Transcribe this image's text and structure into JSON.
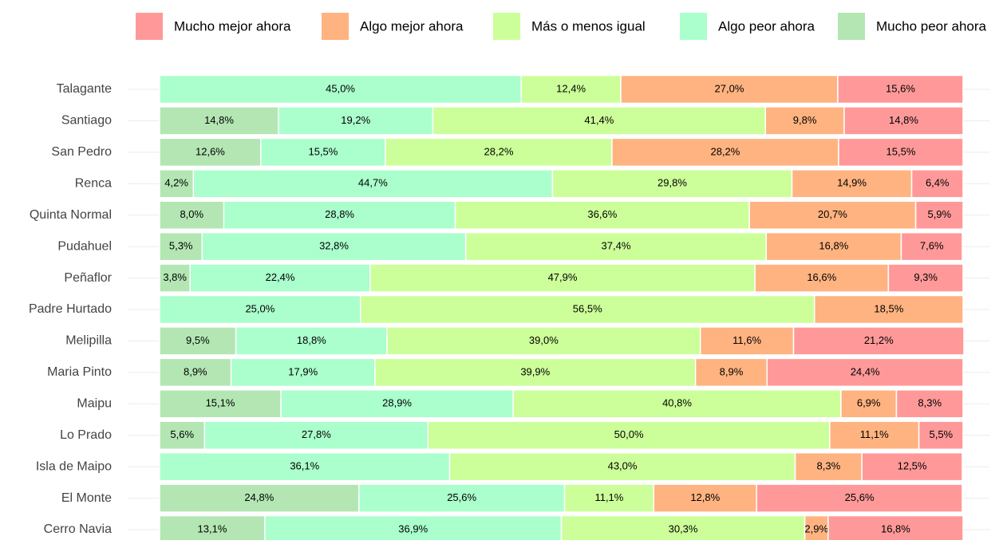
{
  "chart_data": {
    "type": "stacked-barh",
    "categories": [
      "Talagante",
      "Santiago",
      "San Pedro",
      "Renca",
      "Quinta Normal",
      "Pudahuel",
      "Peñaflor",
      "Padre Hurtado",
      "Melipilla",
      "Maria Pinto",
      "Maipu",
      "Lo Prado",
      "Isla de Maipo",
      "El Monte",
      "Cerro Navia"
    ],
    "xlim": [
      0,
      100
    ],
    "legend": "top",
    "series": [
      {
        "name": "Mucho mejor ahora",
        "color": "#ff9999",
        "values": [
          15.6,
          14.8,
          15.5,
          6.4,
          5.9,
          7.6,
          9.3,
          null,
          21.2,
          24.4,
          8.3,
          5.5,
          12.5,
          25.6,
          16.8
        ],
        "value_labels": [
          "15,6%",
          "14,8%",
          "15,5%",
          "6,4%",
          "5,9%",
          "7,6%",
          "9,3%",
          null,
          "21,2%",
          "24,4%",
          "8,3%",
          "5,5%",
          "12,5%",
          "25,6%",
          "16,8%"
        ]
      },
      {
        "name": "Algo mejor ahora",
        "color": "#ffb380",
        "values": [
          27.0,
          9.8,
          28.2,
          14.9,
          20.7,
          16.8,
          16.6,
          18.5,
          11.6,
          8.9,
          6.9,
          11.1,
          8.3,
          12.8,
          2.9
        ],
        "value_labels": [
          "27,0%",
          "9,8%",
          "28,2%",
          "14,9%",
          "20,7%",
          "16,8%",
          "16,6%",
          "18,5%",
          "11,6%",
          "8,9%",
          "6,9%",
          "11,1%",
          "8,3%",
          "12,8%",
          "2,9%"
        ]
      },
      {
        "name": "Más o menos igual",
        "color": "#ccff99",
        "values": [
          12.4,
          41.4,
          28.2,
          29.8,
          36.6,
          37.4,
          47.9,
          56.5,
          39.0,
          39.9,
          40.8,
          50.0,
          43.0,
          11.1,
          30.3
        ],
        "value_labels": [
          "12,4%",
          "41,4%",
          "28,2%",
          "29,8%",
          "36,6%",
          "37,4%",
          "47,9%",
          "56,5%",
          "39,0%",
          "39,9%",
          "40,8%",
          "50,0%",
          "43,0%",
          "11,1%",
          "30,3%"
        ]
      },
      {
        "name": "Algo peor ahora",
        "color": "#aaffcc",
        "values": [
          45.0,
          19.2,
          15.5,
          44.7,
          28.8,
          32.8,
          22.4,
          25.0,
          18.8,
          17.9,
          28.9,
          27.8,
          36.1,
          25.6,
          36.9
        ],
        "value_labels": [
          "45,0%",
          "19,2%",
          "15,5%",
          "44,7%",
          "28,8%",
          "32,8%",
          "22,4%",
          "25,0%",
          "18,8%",
          "17,9%",
          "28,9%",
          "27,8%",
          "36,1%",
          "25,6%",
          "36,9%"
        ]
      },
      {
        "name": "Mucho peor ahora",
        "color": "#b3e6b3",
        "values": [
          null,
          14.8,
          12.6,
          4.2,
          8.0,
          5.3,
          3.8,
          null,
          9.5,
          8.9,
          15.1,
          5.6,
          null,
          24.8,
          13.1
        ],
        "value_labels": [
          null,
          "14,8%",
          "12,6%",
          "4,2%",
          "8,0%",
          "5,3%",
          "3,8%",
          null,
          "9,5%",
          "8,9%",
          "15,1%",
          "5,6%",
          null,
          "24,8%",
          "13,1%"
        ]
      }
    ]
  }
}
